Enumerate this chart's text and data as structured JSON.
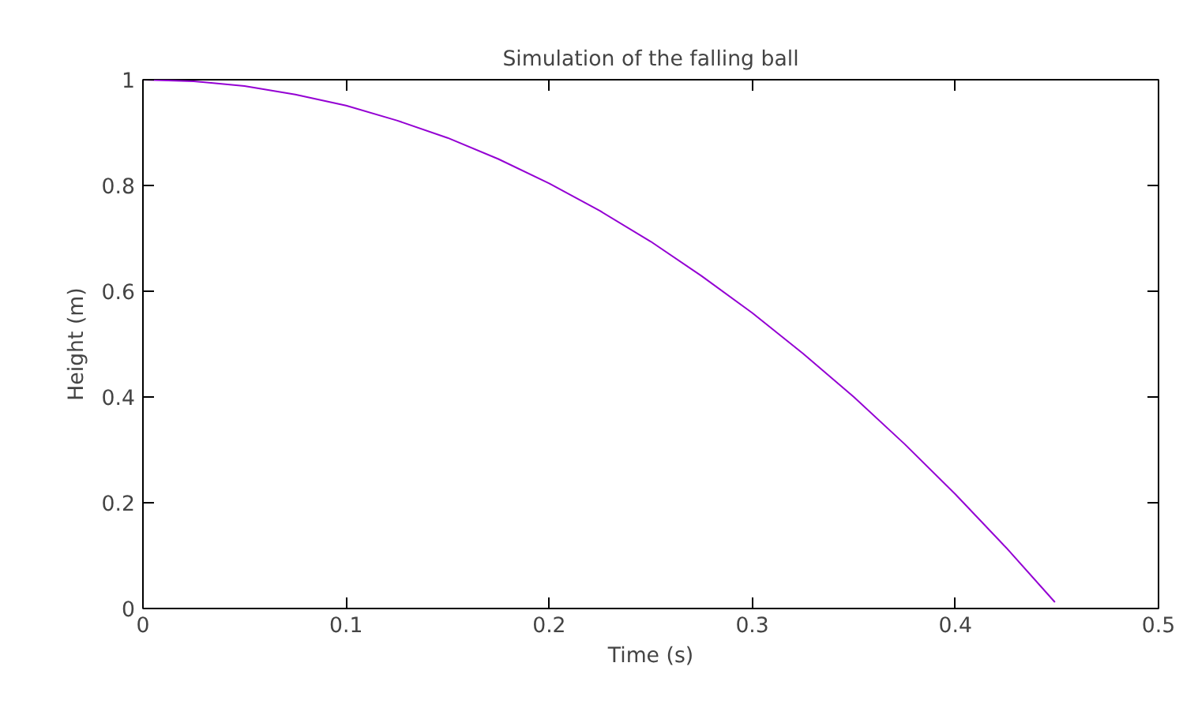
{
  "chart_data": {
    "type": "line",
    "title": "Simulation of the falling ball",
    "xlabel": "Time (s)",
    "ylabel": "Height (m)",
    "x": [
      0,
      0.025,
      0.05,
      0.075,
      0.1,
      0.125,
      0.15,
      0.175,
      0.2,
      0.225,
      0.25,
      0.275,
      0.3,
      0.325,
      0.35,
      0.375,
      0.4,
      0.425,
      0.449
    ],
    "series": [
      {
        "color": "#9400d3",
        "values": [
          1,
          0.997,
          0.988,
          0.972,
          0.951,
          0.923,
          0.89,
          0.85,
          0.804,
          0.752,
          0.694,
          0.629,
          0.559,
          0.482,
          0.4,
          0.311,
          0.216,
          0.115,
          0.012
        ]
      }
    ],
    "xlim": [
      0,
      0.5
    ],
    "ylim": [
      0,
      1
    ],
    "xticks": [
      0,
      0.1,
      0.2,
      0.3,
      0.4,
      0.5
    ],
    "yticks": [
      0,
      0.2,
      0.4,
      0.6,
      0.8,
      1
    ],
    "grid": false,
    "marker": "none",
    "line_style": "solid"
  }
}
